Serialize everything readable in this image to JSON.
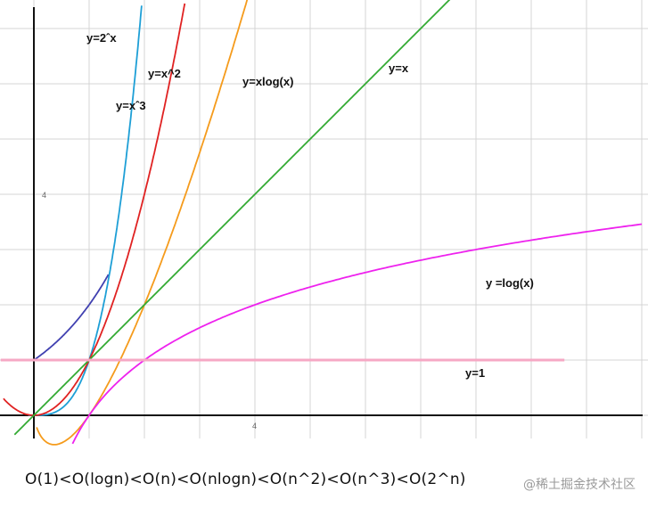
{
  "chart_data": {
    "type": "line",
    "x_range": [
      -0.5,
      10.4
    ],
    "y_range": [
      -0.4,
      7.5
    ],
    "grid": true,
    "axis_tick_labels": [
      {
        "axis": "y",
        "value": 4,
        "label": "4"
      },
      {
        "axis": "x",
        "value": 4,
        "label": "4"
      }
    ],
    "series": [
      {
        "name": "y=2^x",
        "label": "y=2ˆx",
        "function": "2^x",
        "color": "#4040b0",
        "domain": [
          0,
          1.35
        ]
      },
      {
        "name": "y=x^3",
        "label": "y=xˆ3",
        "function": "x^3",
        "color": "#1e9fd6",
        "domain": [
          -0.1,
          1.95
        ]
      },
      {
        "name": "y=x^2",
        "label": "y=x^2",
        "function": "x^2",
        "color": "#e02222",
        "domain": [
          -0.55,
          2.73
        ]
      },
      {
        "name": "y=xlog(x)",
        "label": "y=xlog(x)",
        "function": "x*log2(x)",
        "color": "#f59b1c",
        "domain": [
          0.05,
          4.6
        ]
      },
      {
        "name": "y=x",
        "label": "y=x",
        "function": "x",
        "color": "#33aa33",
        "domain": [
          -0.35,
          7.6
        ]
      },
      {
        "name": "y =log(x)",
        "label": "y =log(x)",
        "function": "log2(x)",
        "color": "#ee22ee",
        "domain": [
          0.7,
          11
        ]
      },
      {
        "name": "y=1",
        "label": "y=1",
        "function": "1",
        "color": "#f6a8c4",
        "domain": [
          -0.6,
          9.6
        ]
      }
    ]
  },
  "caption": "O(1)<O(logn)<O(n)<O(nlogn)<O(n^2)<O(n^3)<O(2^n)",
  "watermark": "@稀土掘金技术社区"
}
